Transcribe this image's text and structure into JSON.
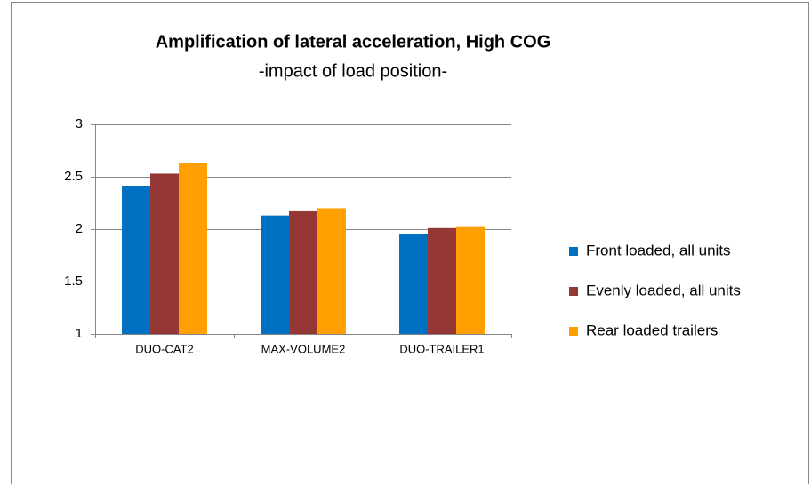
{
  "chart_data": {
    "type": "bar",
    "title": "Amplification of lateral acceleration, High COG",
    "subtitle": "-impact of load position-",
    "categories": [
      "DUO-CAT2",
      "MAX-VOLUME2",
      "DUO-TRAILER1"
    ],
    "series": [
      {
        "name": "Front loaded, all units",
        "color": "#0070c0",
        "values": [
          2.41,
          2.13,
          1.95
        ]
      },
      {
        "name": "Evenly loaded, all units",
        "color": "#953735",
        "values": [
          2.53,
          2.17,
          2.01
        ]
      },
      {
        "name": "Rear loaded trailers",
        "color": "#ffa000",
        "values": [
          2.63,
          2.2,
          2.02
        ]
      }
    ],
    "ylim": [
      1,
      3
    ],
    "yticks": [
      1,
      1.5,
      2,
      2.5,
      3
    ],
    "grid": true,
    "legend": "right"
  }
}
